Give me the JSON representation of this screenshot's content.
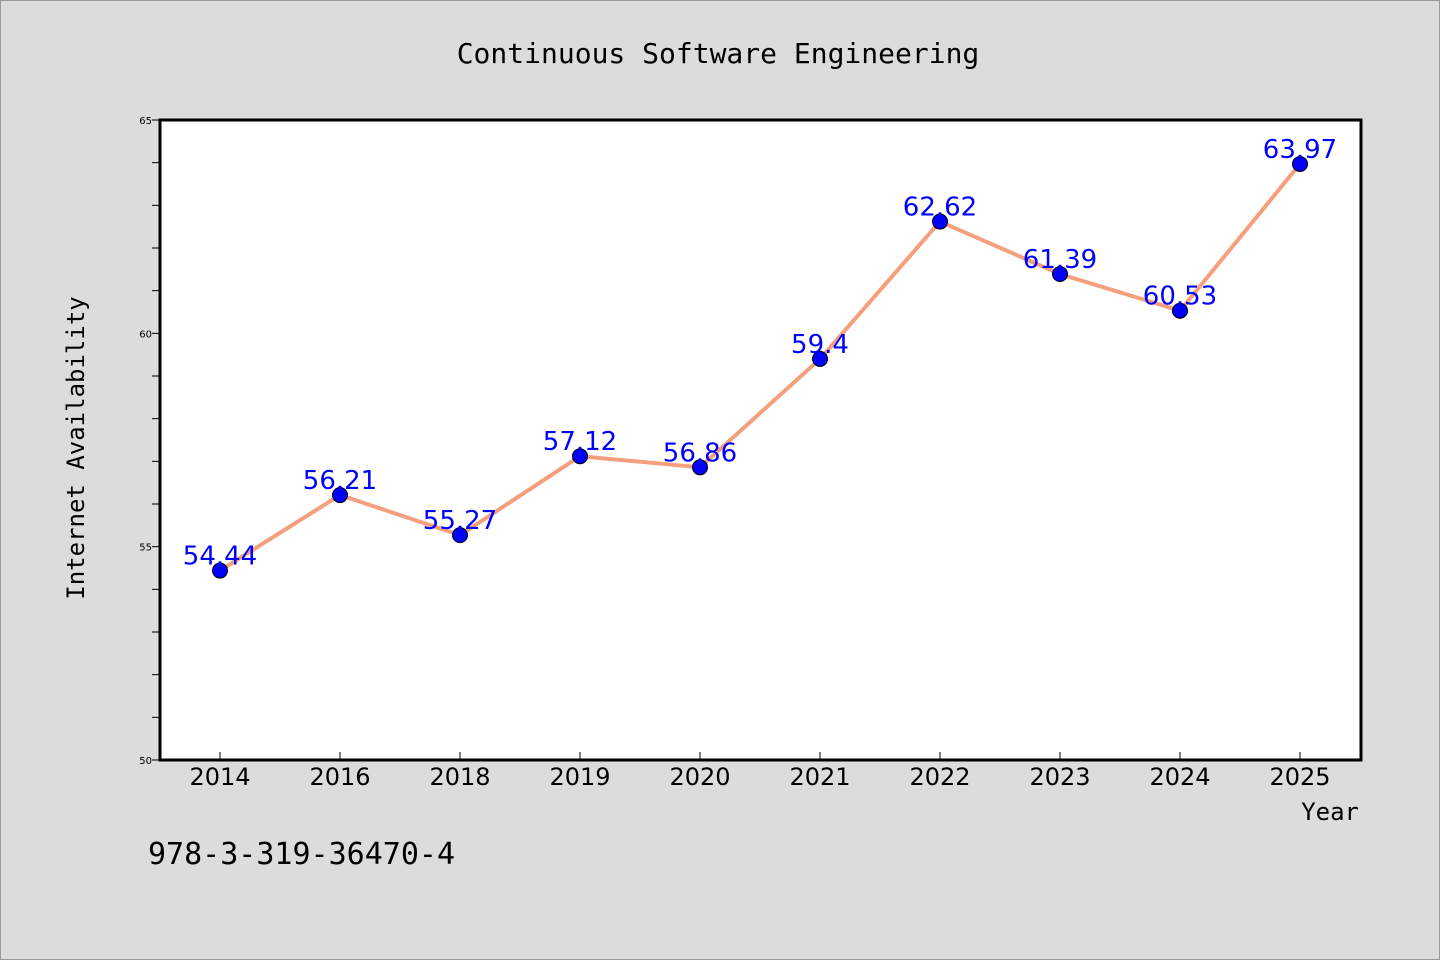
{
  "chart_data": {
    "type": "line",
    "title": "Continuous Software Engineering",
    "xlabel": "Year",
    "ylabel": "Internet Availability",
    "categories": [
      "2014",
      "2016",
      "2018",
      "2019",
      "2020",
      "2021",
      "2022",
      "2023",
      "2024",
      "2025"
    ],
    "series": [
      {
        "values": [
          54.44,
          56.21,
          55.27,
          57.12,
          56.86,
          59.4,
          62.62,
          61.39,
          60.53,
          63.97
        ],
        "labels": [
          "54.44",
          "56.21",
          "55.27",
          "57.12",
          "56.86",
          "59.4",
          "62.62",
          "61.39",
          "60.53",
          "63.97"
        ],
        "line_color": "#f4a07e",
        "marker_color": "#0000ff",
        "label_color": "#0000ff"
      }
    ],
    "ylim": [
      50,
      65
    ],
    "yticks": [
      50,
      55,
      60,
      65
    ],
    "ytick_labels": [
      "50",
      "55",
      "60",
      "65"
    ],
    "y_minor_step": 1,
    "grid": false,
    "background": "#dcdcdc",
    "plot_background": "#ffffff"
  },
  "footnote": "978-3-319-36470-4"
}
